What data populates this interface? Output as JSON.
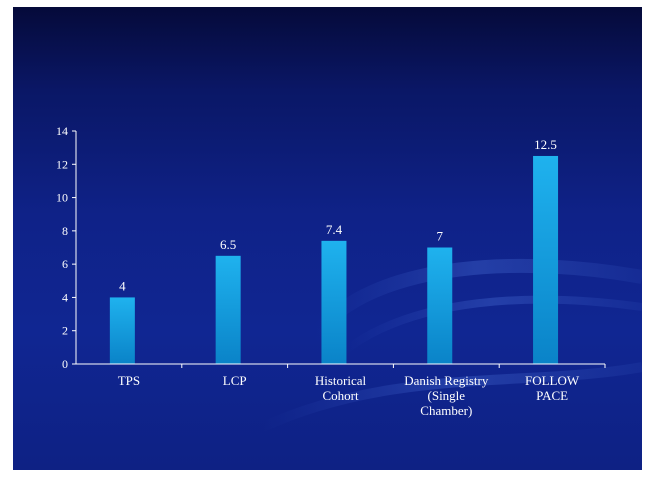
{
  "slide": {
    "background": "#0f2288"
  },
  "chart_data": {
    "type": "bar",
    "title": "",
    "xlabel": "",
    "ylabel": "",
    "categories": [
      [
        "TPS"
      ],
      [
        "LCP"
      ],
      [
        "Historical",
        "Cohort"
      ],
      [
        "Danish Registry",
        "(Single",
        "Chamber)"
      ],
      [
        "FOLLOW",
        "PACE"
      ]
    ],
    "values": [
      4,
      6.5,
      7.4,
      7,
      12.5
    ],
    "data_labels": [
      "4",
      "6.5",
      "7.4",
      "7",
      "12.5"
    ],
    "ylim": [
      0,
      14
    ],
    "yticks": [
      0,
      2,
      4,
      6,
      8,
      10,
      12,
      14
    ],
    "grid": false,
    "legend": "none",
    "bar_color_top": "#1fb2ee",
    "bar_color_bottom": "#0a83c8",
    "axis_color": "#ffffff"
  }
}
